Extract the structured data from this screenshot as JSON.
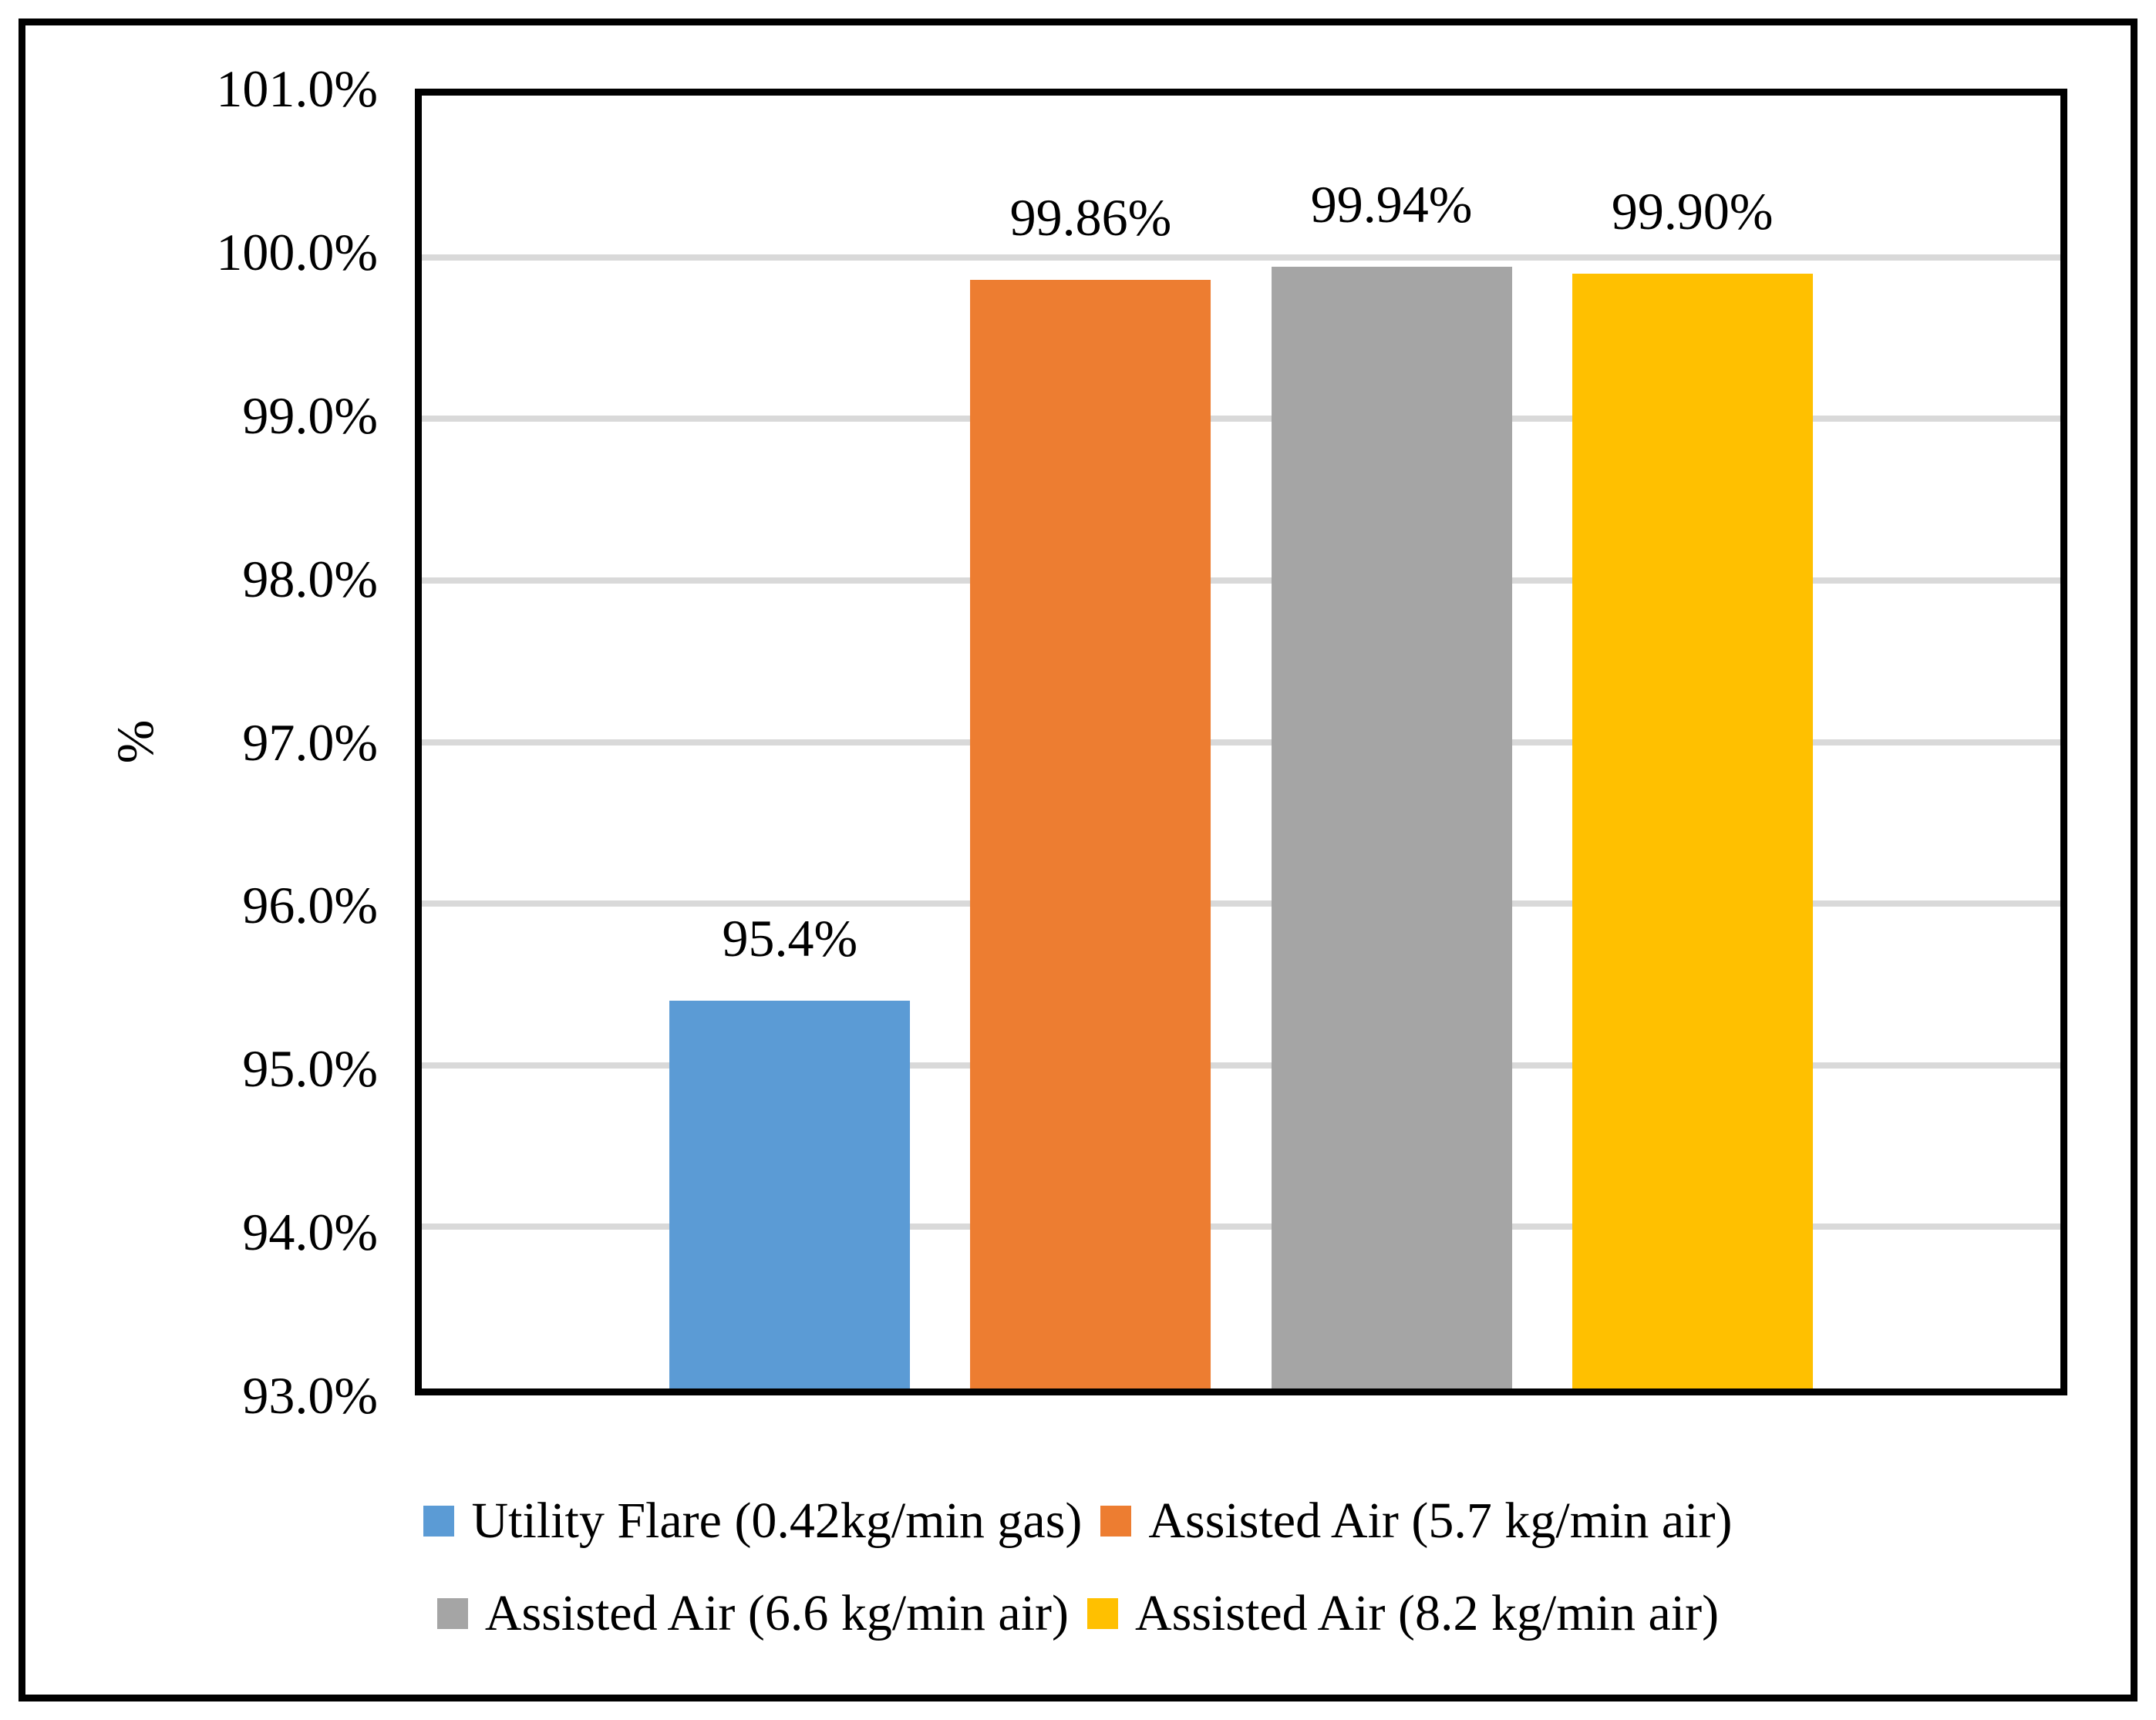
{
  "figure": {
    "background_color": "#FFFFFF",
    "border_color": "#000000"
  },
  "chart_data": {
    "type": "bar",
    "title": "",
    "xlabel": "",
    "ylabel": "%",
    "ylim": [
      93.0,
      101.0
    ],
    "ytick_step": 1.0,
    "yticks": [
      "93.0%",
      "94.0%",
      "95.0%",
      "96.0%",
      "97.0%",
      "98.0%",
      "99.0%",
      "100.0%",
      "101.0%"
    ],
    "grid": "horizontal",
    "gridline_color": "#D9D9D9",
    "categories": [
      "Utility Flare (0.42kg/min gas)",
      "Assisted Air (5.7 kg/min air)",
      "Assisted Air (6.6 kg/min air)",
      "Assisted Air (8.2 kg/min air)"
    ],
    "values": [
      95.4,
      99.86,
      99.94,
      99.9
    ],
    "data_labels": [
      "95.4%",
      "99.86%",
      "99.94%",
      "99.90%"
    ],
    "bar_colors": [
      "#5B9BD5",
      "#ED7D31",
      "#A5A5A5",
      "#FFC000"
    ],
    "legend": {
      "position": "bottom",
      "rows": [
        [
          {
            "label": "Utility Flare (0.42kg/min gas)",
            "color": "#5B9BD5"
          },
          {
            "label": "Assisted Air (5.7 kg/min air)",
            "color": "#ED7D31"
          }
        ],
        [
          {
            "label": "Assisted Air (6.6 kg/min air)",
            "color": "#A5A5A5"
          },
          {
            "label": "Assisted Air (8.2 kg/min air)",
            "color": "#FFC000"
          }
        ]
      ]
    }
  }
}
